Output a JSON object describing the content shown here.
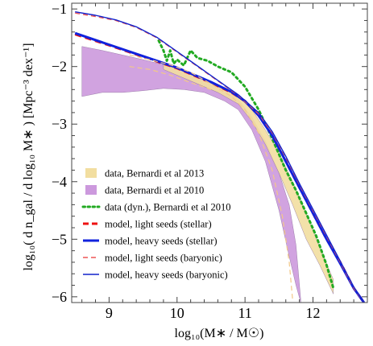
{
  "chart_data": {
    "type": "line",
    "xlabel": "log₁₀(M∗ / M☉)",
    "ylabel": "log₁₀( d n_gal / d log₁₀ M∗ ) [Mpc⁻³ dex⁻¹]",
    "xlim": [
      8.45,
      12.8
    ],
    "ylim": [
      -6.1,
      -0.9
    ],
    "x_ticks": [
      9,
      10,
      11,
      12
    ],
    "x_tick_labels": [
      "9",
      "10",
      "11",
      "12"
    ],
    "y_ticks": [
      -1,
      -2,
      -3,
      -4,
      -5,
      -6
    ],
    "y_tick_labels": [
      "−1",
      "−2",
      "−3",
      "−4",
      "−5",
      "−6"
    ],
    "grid": false,
    "legend_position": "lower-left",
    "legend": [
      {
        "label": "data, Bernardi et al 2013",
        "style": "band",
        "color": "#f2dea0"
      },
      {
        "label": "data, Bernardi et al 2010",
        "style": "band",
        "color": "#cc99dd"
      },
      {
        "label": "data (dyn.), Bernardi et al 2010",
        "style": "dotted",
        "color": "#22aa22"
      },
      {
        "label": "model, light seeds (stellar)",
        "style": "dashed-thick",
        "color": "#ee1111"
      },
      {
        "label": "model, heavy seeds (stellar)",
        "style": "solid-thick",
        "color": "#1122dd"
      },
      {
        "label": "model, light seeds (baryonic)",
        "style": "dashed-thin",
        "color": "#ee5555"
      },
      {
        "label": "model, heavy seeds (baryonic)",
        "style": "solid-thin",
        "color": "#1122cc"
      }
    ],
    "bands": [
      {
        "name": "data, Bernardi et al 2010",
        "color": "#cc99dd",
        "x": [
          8.6,
          8.9,
          9.2,
          9.5,
          9.8,
          10.1,
          10.4,
          10.7,
          10.9,
          11.1,
          11.3,
          11.5,
          11.65,
          11.75,
          11.82
        ],
        "upper": [
          -1.65,
          -1.72,
          -1.8,
          -1.88,
          -1.97,
          -2.07,
          -2.2,
          -2.4,
          -2.57,
          -2.88,
          -3.3,
          -3.85,
          -4.4,
          -5.1,
          -6.05
        ],
        "lower": [
          -2.52,
          -2.45,
          -2.45,
          -2.42,
          -2.38,
          -2.4,
          -2.45,
          -2.6,
          -2.75,
          -3.1,
          -3.65,
          -4.5,
          -5.3,
          -5.8,
          -6.1
        ]
      },
      {
        "name": "data, Bernardi et al 2013",
        "color": "#f2dea0",
        "x": [
          9.8,
          10.2,
          10.6,
          10.9,
          11.1,
          11.3,
          11.5,
          11.7,
          11.9,
          12.1,
          12.3
        ],
        "upper": [
          -1.95,
          -2.12,
          -2.32,
          -2.52,
          -2.75,
          -3.1,
          -3.5,
          -4.0,
          -4.55,
          -5.15,
          -5.7
        ],
        "lower": [
          -2.05,
          -2.25,
          -2.45,
          -2.65,
          -2.95,
          -3.35,
          -3.85,
          -4.4,
          -5.0,
          -5.45,
          -5.95
        ]
      }
    ],
    "series": [
      {
        "name": "data (dyn.), Bernardi et al 2010",
        "style": "dotted",
        "color": "#22aa22",
        "width": 3,
        "x": [
          9.73,
          9.8,
          9.85,
          9.9,
          9.95,
          10.0,
          10.1,
          10.2,
          10.3,
          10.45,
          10.6,
          10.8,
          11.0,
          11.2,
          11.4,
          11.6,
          11.75,
          11.9,
          12.05,
          12.2,
          12.3
        ],
        "y": [
          -1.55,
          -1.72,
          -1.9,
          -1.72,
          -1.95,
          -1.88,
          -1.98,
          -1.72,
          -1.85,
          -1.9,
          -2.0,
          -2.1,
          -2.35,
          -2.75,
          -3.25,
          -3.8,
          -4.15,
          -4.55,
          -4.95,
          -5.45,
          -5.85
        ]
      },
      {
        "name": "model, light seeds (stellar)",
        "style": "dashed",
        "color": "#ee1111",
        "width": 3,
        "x": [
          8.5,
          9.0,
          9.5,
          10.0,
          10.5,
          10.8,
          11.0,
          11.2,
          11.4,
          11.6,
          11.8,
          12.0,
          12.2,
          12.4,
          12.6,
          12.75
        ],
        "y": [
          -1.44,
          -1.63,
          -1.83,
          -2.03,
          -2.28,
          -2.45,
          -2.6,
          -2.85,
          -3.2,
          -3.65,
          -4.1,
          -4.55,
          -5.0,
          -5.4,
          -5.85,
          -6.1
        ]
      },
      {
        "name": "model, heavy seeds (stellar)",
        "style": "solid",
        "color": "#1122dd",
        "width": 3,
        "x": [
          8.5,
          9.0,
          9.5,
          10.0,
          10.5,
          10.8,
          11.0,
          11.2,
          11.4,
          11.6,
          11.8,
          12.0,
          12.2,
          12.4,
          12.6,
          12.75
        ],
        "y": [
          -1.42,
          -1.62,
          -1.82,
          -2.02,
          -2.27,
          -2.44,
          -2.6,
          -2.85,
          -3.2,
          -3.65,
          -4.1,
          -4.55,
          -5.0,
          -5.42,
          -5.85,
          -6.1
        ]
      },
      {
        "name": "model, light seeds (baryonic)",
        "style": "dashed",
        "color": "#ee5555",
        "width": 1.4,
        "x": [
          8.5,
          8.8,
          9.1,
          9.4,
          9.7,
          10.0,
          10.3,
          10.6,
          10.9,
          11.2,
          11.4,
          11.6,
          11.8,
          12.0,
          12.2,
          12.4,
          12.6,
          12.75
        ],
        "y": [
          -1.07,
          -1.13,
          -1.2,
          -1.32,
          -1.5,
          -1.75,
          -2.0,
          -2.25,
          -2.5,
          -2.82,
          -3.15,
          -3.58,
          -4.05,
          -4.5,
          -4.95,
          -5.4,
          -5.85,
          -6.1
        ]
      },
      {
        "name": "model, heavy seeds (baryonic)",
        "style": "solid",
        "color": "#1122cc",
        "width": 1.4,
        "x": [
          8.5,
          8.8,
          9.1,
          9.4,
          9.7,
          10.0,
          10.3,
          10.6,
          10.9,
          11.2,
          11.4,
          11.6,
          11.8,
          12.0,
          12.2,
          12.4,
          12.6,
          12.75
        ],
        "y": [
          -1.05,
          -1.11,
          -1.19,
          -1.31,
          -1.49,
          -1.74,
          -1.99,
          -2.24,
          -2.49,
          -2.8,
          -3.13,
          -3.56,
          -4.03,
          -4.48,
          -4.93,
          -5.38,
          -5.83,
          -6.1
        ]
      },
      {
        "name": "Bernardi 2010 inner dashed",
        "style": "dashed",
        "color": "#f2c888",
        "width": 1.2,
        "x": [
          9.3,
          9.6,
          9.9,
          10.2,
          10.5,
          10.8,
          11.0,
          11.2,
          11.4,
          11.55,
          11.65,
          11.7
        ],
        "y": [
          -1.8,
          -1.88,
          -1.97,
          -2.1,
          -2.3,
          -2.52,
          -2.75,
          -3.15,
          -3.8,
          -4.6,
          -5.4,
          -6.05
        ]
      },
      {
        "name": "Bernardi 2013 inner dashed",
        "style": "dashed",
        "color": "#f2c888",
        "width": 1.2,
        "x": [
          9.3,
          9.6,
          9.9,
          10.2,
          10.5
        ],
        "y": [
          -2.0,
          -2.05,
          -2.15,
          -2.28,
          -2.4
        ]
      }
    ]
  }
}
